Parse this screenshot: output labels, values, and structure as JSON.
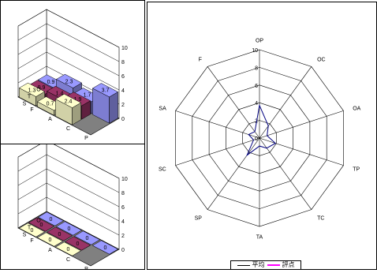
{
  "chart_data": [
    {
      "type": "bar3d",
      "panel": "top-left",
      "title": "",
      "ylim": [
        0,
        10
      ],
      "y_ticks": [
        0,
        2,
        4,
        6,
        8,
        10
      ],
      "rows": [
        "O",
        "T",
        "S"
      ],
      "cols": [
        "F",
        "A",
        "C",
        "P"
      ],
      "bars": [
        {
          "row": "O",
          "col": "F",
          "value": 0.9
        },
        {
          "row": "O",
          "col": "A",
          "value": 2.3
        },
        {
          "row": "O",
          "col": "C",
          "value": 1.7
        },
        {
          "row": "O",
          "col": "P",
          "value": 3.7
        },
        {
          "row": "T",
          "col": "F",
          "value": 0.9
        },
        {
          "row": "T",
          "col": "A",
          "value": 1.4
        },
        {
          "row": "T",
          "col": "C",
          "value": 1.9
        },
        {
          "row": "S",
          "col": "F",
          "value": 1.3
        },
        {
          "row": "S",
          "col": "A",
          "value": 0.7
        },
        {
          "row": "S",
          "col": "C",
          "value": 2.4
        }
      ]
    },
    {
      "type": "bar3d",
      "panel": "bottom-left",
      "title": "",
      "ylim": [
        0,
        10
      ],
      "y_ticks": [
        0,
        2,
        4,
        6,
        8,
        10
      ],
      "rows": [
        "O",
        "T",
        "S"
      ],
      "cols": [
        "F",
        "A",
        "C",
        "P"
      ],
      "bars": [
        {
          "row": "O",
          "col": "F",
          "value": 0
        },
        {
          "row": "O",
          "col": "A",
          "value": 0
        },
        {
          "row": "O",
          "col": "C",
          "value": 0
        },
        {
          "row": "O",
          "col": "P",
          "value": 0
        },
        {
          "row": "T",
          "col": "F",
          "value": 0
        },
        {
          "row": "T",
          "col": "A",
          "value": 0
        },
        {
          "row": "T",
          "col": "C",
          "value": 0
        },
        {
          "row": "S",
          "col": "F",
          "value": 0
        },
        {
          "row": "S",
          "col": "A",
          "value": 0
        },
        {
          "row": "S",
          "col": "C",
          "value": 0
        }
      ]
    },
    {
      "type": "radar",
      "panel": "right",
      "title": "",
      "axes": [
        "OP",
        "OC",
        "OA",
        "TP",
        "TC",
        "TA",
        "SP",
        "SC",
        "SA",
        "F"
      ],
      "rmax": 10,
      "r_ticks": [
        2,
        4,
        6,
        8,
        10
      ],
      "series": [
        {
          "name": "平均",
          "values": [
            3.7,
            1.7,
            0.9,
            1.9,
            1.4,
            0.9,
            2.4,
            0.7,
            1.3,
            0.9
          ]
        },
        {
          "name": "評点",
          "values": [
            0,
            0,
            0,
            0,
            0,
            0,
            0,
            0,
            0,
            0
          ]
        }
      ],
      "legend": "bottom"
    }
  ],
  "colors": {
    "O": "#9999ff",
    "T": "#993366",
    "S": "#ffffcc",
    "floor": "#808080",
    "avg": "#000080",
    "score": "#ff00ff"
  }
}
